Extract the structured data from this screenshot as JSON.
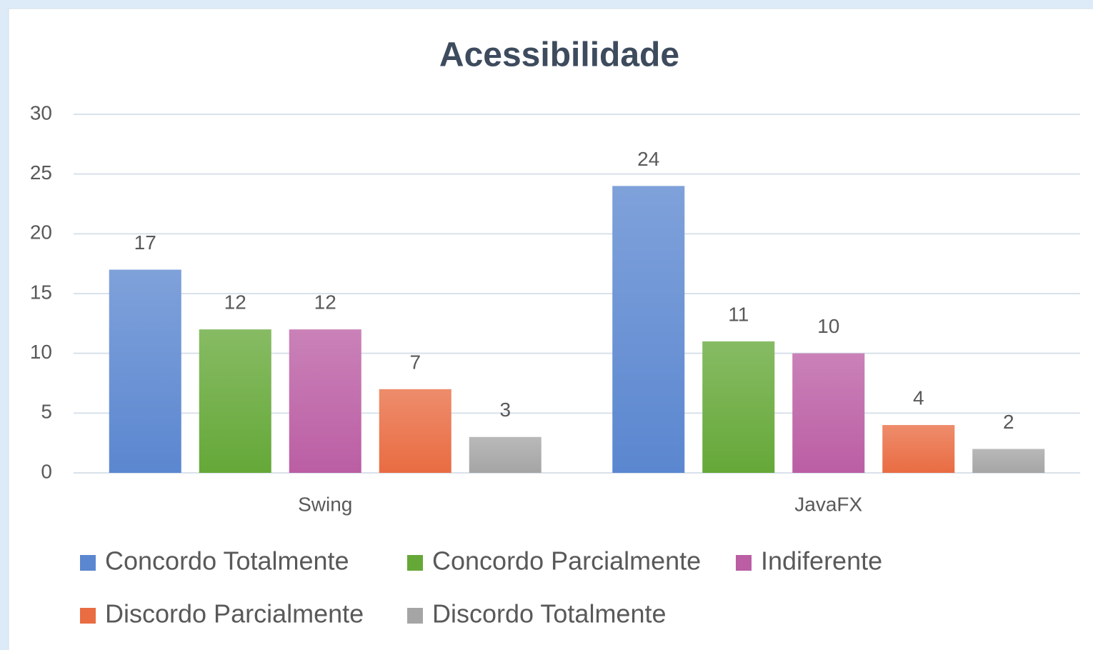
{
  "chart_data": {
    "type": "bar",
    "title": "Acessibilidade",
    "categories": [
      "Swing",
      "JavaFX"
    ],
    "series": [
      {
        "name": "Concordo Totalmente",
        "color": "#5b87d0",
        "values": [
          17,
          24
        ]
      },
      {
        "name": "Concordo Parcialmente",
        "color": "#65a838",
        "values": [
          12,
          11
        ]
      },
      {
        "name": "Indiferente",
        "color": "#bb5ea4",
        "values": [
          12,
          10
        ]
      },
      {
        "name": "Discordo Parcialmente",
        "color": "#e96c42",
        "values": [
          7,
          4
        ]
      },
      {
        "name": "Discordo Totalmente",
        "color": "#a5a5a5",
        "values": [
          3,
          2
        ]
      }
    ],
    "ylim": [
      0,
      30
    ],
    "yticks": [
      0,
      5,
      10,
      15,
      20,
      25,
      30
    ],
    "grid": true,
    "legend": "bottom"
  }
}
